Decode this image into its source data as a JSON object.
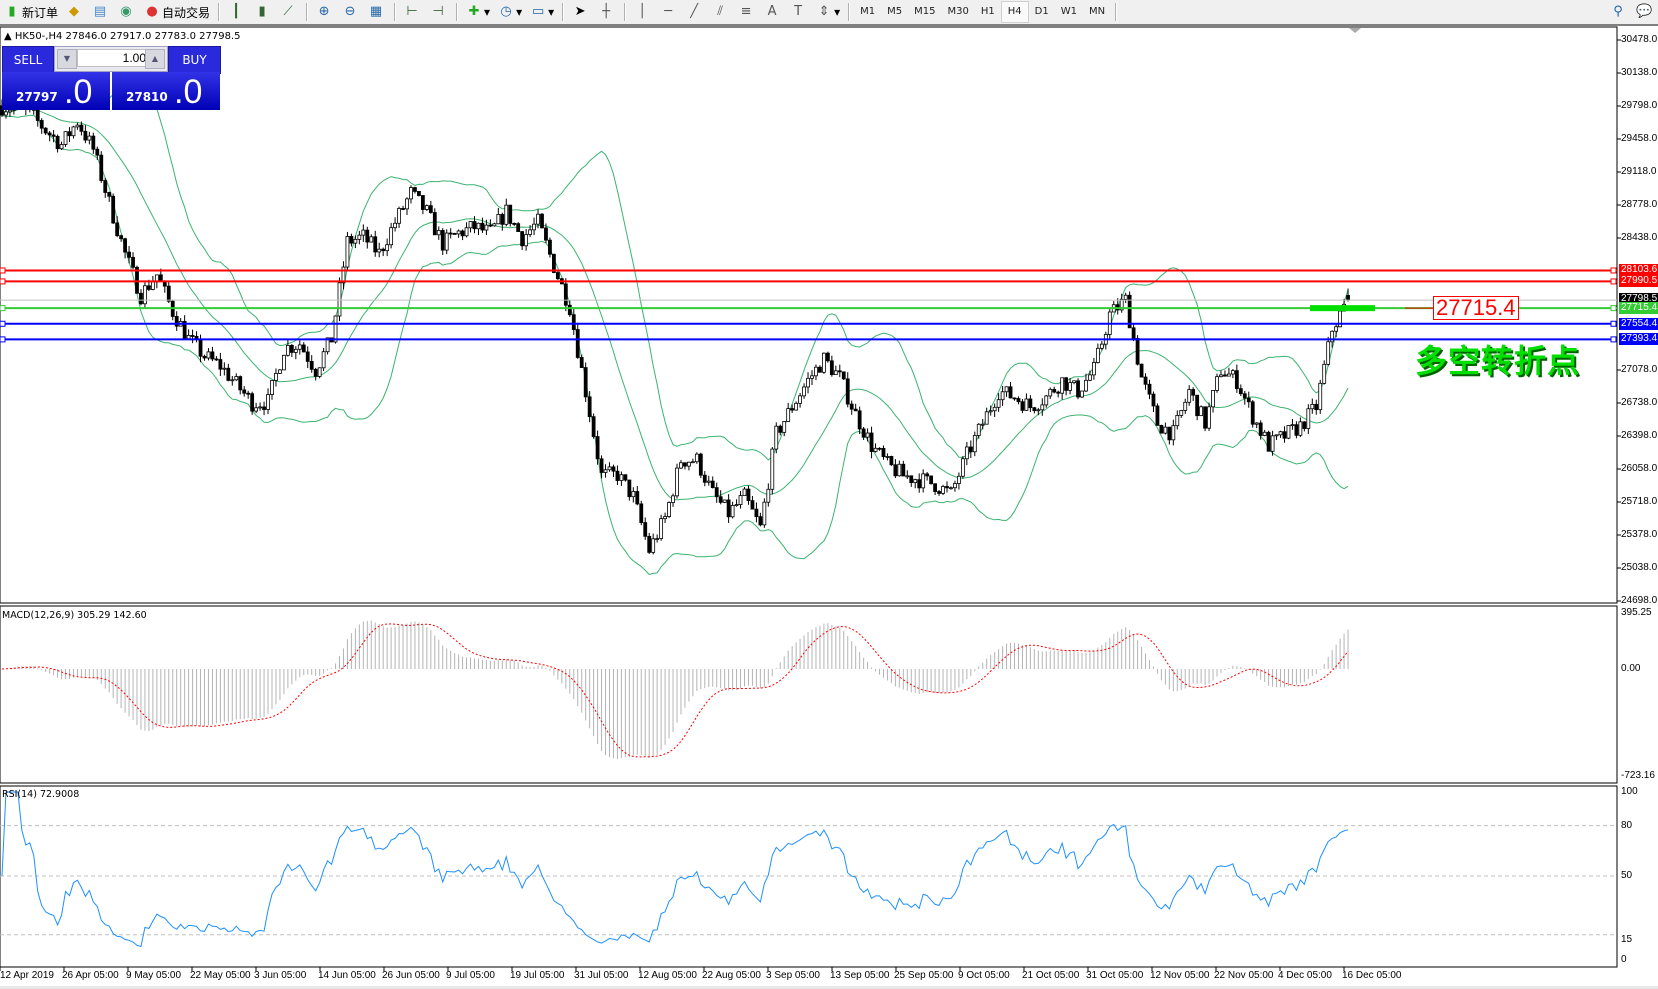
{
  "toolbar": {
    "new_order": "新订单",
    "auto_trading": "自动交易",
    "timeframes": [
      "M1",
      "M5",
      "M15",
      "M30",
      "H1",
      "H4",
      "D1",
      "W1",
      "MN"
    ],
    "active_timeframe": "H4",
    "icons": [
      "new-order-icon",
      "gold-bars-icon",
      "history-icon",
      "signal-icon",
      "auto-trading-icon",
      "bar-chart-icon",
      "candlestick-icon",
      "line-chart-icon",
      "zoom-in-icon",
      "zoom-out-icon",
      "tile-windows-icon",
      "chart-shift-icon",
      "autoscroll-icon",
      "add-indicator-icon",
      "periods-icon",
      "templates-icon",
      "cursor-icon",
      "crosshair-icon",
      "vertical-line-icon",
      "horizontal-line-icon",
      "trendline-icon",
      "equidistant-channel-icon",
      "fibonacci-icon",
      "text-icon",
      "text-label-icon",
      "arrows-icon",
      "search-icon",
      "chat-icon"
    ]
  },
  "chart": {
    "header": "HK50-,H4  27846.0 27917.0 27783.0 27798.5",
    "symbol": "HK50-",
    "timeframe": "H4",
    "ohlc": {
      "open": 27846.0,
      "high": 27917.0,
      "low": 27783.0,
      "close": 27798.5
    }
  },
  "trade_panel": {
    "sell_label": "SELL",
    "buy_label": "BUY",
    "volume": "1.00",
    "sell_price_main": "27797",
    "sell_price_frac": ".0",
    "buy_price_main": "27810",
    "buy_price_frac": ".0"
  },
  "price_axis": [
    "30478.0",
    "30138.0",
    "29798.0",
    "29458.0",
    "29118.0",
    "28778.0",
    "28438.0",
    "27078.0",
    "26738.0",
    "26398.0",
    "26058.0",
    "25718.0",
    "25378.0",
    "25038.0",
    "24698.0"
  ],
  "price_axis_values": [
    30478,
    30138,
    29798,
    29458,
    29118,
    28778,
    28438,
    27078,
    26738,
    26398,
    26058,
    25718,
    25378,
    25038,
    24698
  ],
  "current_price": {
    "label": "27798.5",
    "value": 27798.5
  },
  "levels": [
    {
      "label": "28103.6",
      "value": 28103.6,
      "color": "#ff0000"
    },
    {
      "label": "27990.5",
      "value": 27990.5,
      "color": "#ff0000"
    },
    {
      "label": "27715.4",
      "value": 27715.4,
      "color": "#33cc33"
    },
    {
      "label": "27554.4",
      "value": 27554.4,
      "color": "#0000ff"
    },
    {
      "label": "27393.4",
      "value": 27393.4,
      "color": "#0000ff"
    }
  ],
  "annotations": {
    "price_callout": "27715.4",
    "note": "多空转折点",
    "note_color": "#00e000"
  },
  "price_path_closes": [
    29800,
    29780,
    29720,
    29550,
    29400,
    29640,
    29350,
    28800,
    28276,
    27850,
    28060,
    27680,
    27400,
    27220,
    27120,
    26930,
    26740,
    26750,
    27300,
    27350,
    27080,
    27400,
    28400,
    28450,
    28280,
    28600,
    28900,
    28700,
    28380,
    28490,
    28550,
    28490,
    28710,
    28440,
    28600,
    28150,
    27730,
    26860,
    25990,
    26000,
    25770,
    25220,
    25550,
    26150,
    26150,
    25800,
    25600,
    25770,
    25450,
    26420,
    26700,
    26970,
    27190,
    27000,
    26620,
    26300,
    26100,
    25990,
    25950,
    25900,
    25800,
    26200,
    26530,
    26860,
    26800,
    26700,
    26800,
    26970,
    26860,
    27080,
    27650,
    27800,
    27000,
    26530,
    26420,
    26860,
    26530,
    27080,
    26970,
    26600,
    26300,
    26400,
    26500,
    26700,
    27500,
    27798.5
  ],
  "indicators": {
    "bollinger_color": "#3cb371",
    "macd": {
      "label": "MACD(12,26,9) 305.29 142.60",
      "axis": [
        "395.25",
        "0.00",
        "-723.16"
      ],
      "range": [
        -723.16,
        395.25
      ],
      "histogram_color": "#b4b4b4",
      "signal_color": "#ff0000"
    },
    "rsi": {
      "label": "RSI(14) 72.9008",
      "axis": [
        "100",
        "80",
        "50",
        "15",
        "0"
      ],
      "levels": [
        80,
        50,
        15
      ],
      "color": "#1e90ff"
    }
  },
  "date_axis": [
    "12 Apr 2019",
    "26 Apr 05:00",
    "9 May 05:00",
    "22 May 05:00",
    "3 Jun 05:00",
    "14 Jun 05:00",
    "26 Jun 05:00",
    "9 Jul 05:00",
    "19 Jul 05:00",
    "31 Jul 05:00",
    "12 Aug 05:00",
    "22 Aug 05:00",
    "3 Sep 05:00",
    "13 Sep 05:00",
    "25 Sep 05:00",
    "9 Oct 05:00",
    "21 Oct 05:00",
    "31 Oct 05:00",
    "12 Nov 05:00",
    "22 Nov 05:00",
    "4 Dec 05:00",
    "16 Dec 05:00"
  ]
}
